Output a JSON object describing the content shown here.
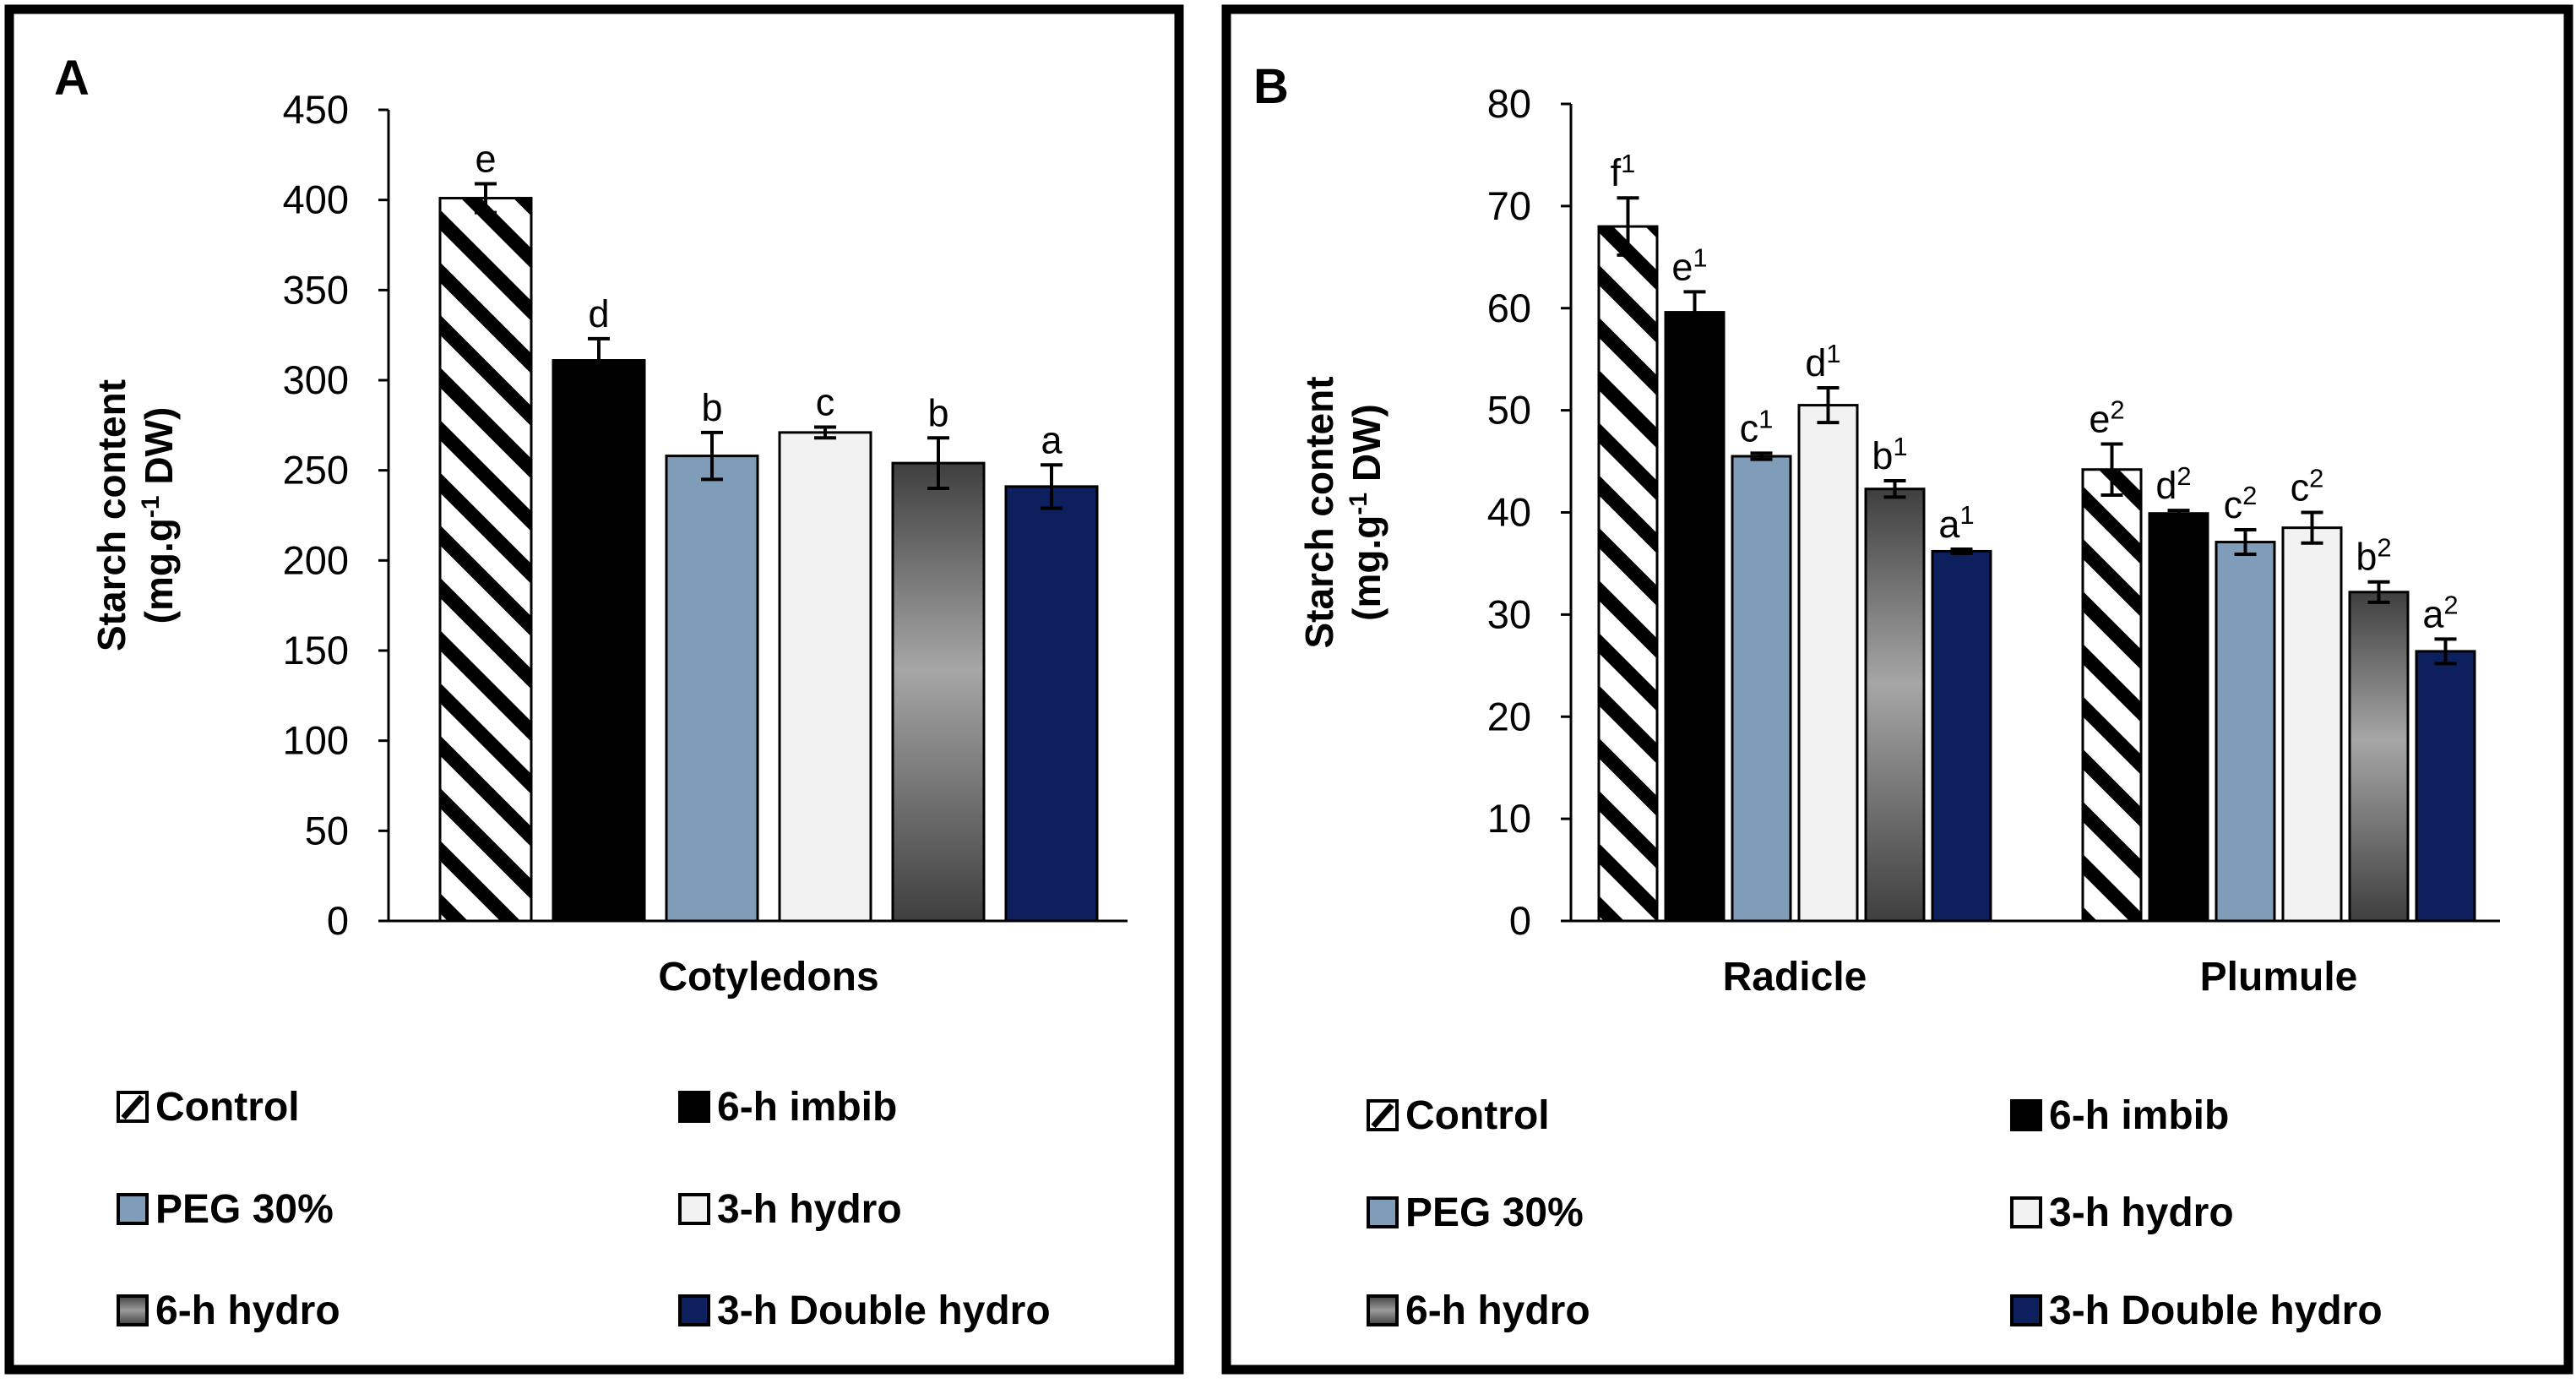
{
  "legend": [
    {
      "label": "Control",
      "color": "#ffffff",
      "pattern": "hatch"
    },
    {
      "label": "6-h imbib",
      "color": "#000000",
      "pattern": "solid"
    },
    {
      "label": "PEG 30%",
      "color": "#7f9cb9",
      "pattern": "solid"
    },
    {
      "label": "3-h hydro",
      "color": "#f2f2f2",
      "pattern": "solid"
    },
    {
      "label": "6-h hydro",
      "color": "#808080",
      "pattern": "gradient"
    },
    {
      "label": "3-h Double hydro",
      "color": "#0d1f5c",
      "pattern": "solid"
    }
  ],
  "chart_data": [
    {
      "panel": "A",
      "type": "bar",
      "title": "",
      "ylabel_line1": "Starch content",
      "ylabel_line2_pre": "(mg.g",
      "ylabel_line2_sup": "-1",
      "ylabel_line2_post": " DW)",
      "ylim": [
        0,
        450
      ],
      "yticks": [
        0,
        50,
        100,
        150,
        200,
        250,
        300,
        350,
        400,
        450
      ],
      "categories": [
        "Cotyledons"
      ],
      "series": [
        {
          "name": "Control",
          "values": [
            401
          ],
          "errors": [
            8
          ],
          "letters": [
            [
              "e",
              ""
            ]
          ]
        },
        {
          "name": "6-h imbib",
          "values": [
            311
          ],
          "errors": [
            12
          ],
          "letters": [
            [
              "d",
              ""
            ]
          ]
        },
        {
          "name": "PEG 30%",
          "values": [
            258
          ],
          "errors": [
            13
          ],
          "letters": [
            [
              "b",
              ""
            ]
          ]
        },
        {
          "name": "3-h hydro",
          "values": [
            271
          ],
          "errors": [
            3
          ],
          "letters": [
            [
              "c",
              ""
            ]
          ]
        },
        {
          "name": "6-h hydro",
          "values": [
            254
          ],
          "errors": [
            14
          ],
          "letters": [
            [
              "b",
              ""
            ]
          ]
        },
        {
          "name": "3-h Double hydro",
          "values": [
            241
          ],
          "errors": [
            12
          ],
          "letters": [
            [
              "a",
              ""
            ]
          ]
        }
      ]
    },
    {
      "panel": "B",
      "type": "bar",
      "title": "",
      "ylabel_line1": "Starch content",
      "ylabel_line2_pre": "(mg.g",
      "ylabel_line2_sup": "-1",
      "ylabel_line2_post": " DW)",
      "ylim": [
        0,
        80
      ],
      "yticks": [
        0,
        10,
        20,
        30,
        40,
        50,
        60,
        70,
        80
      ],
      "categories": [
        "Radicle",
        "Plumule"
      ],
      "series": [
        {
          "name": "Control",
          "values": [
            68,
            44.2
          ],
          "errors": [
            2.8,
            2.5
          ],
          "letters": [
            [
              "f",
              "1"
            ],
            [
              "e",
              "2"
            ]
          ]
        },
        {
          "name": "6-h imbib",
          "values": [
            59.6,
            39.9
          ],
          "errors": [
            2.0,
            0.3
          ],
          "letters": [
            [
              "e",
              "1"
            ],
            [
              "d",
              "2"
            ]
          ]
        },
        {
          "name": "PEG 30%",
          "values": [
            45.5,
            37.1
          ],
          "errors": [
            0.3,
            1.2
          ],
          "letters": [
            [
              "c",
              "1"
            ],
            [
              "c",
              "2"
            ]
          ]
        },
        {
          "name": "3-h hydro",
          "values": [
            50.5,
            38.5
          ],
          "errors": [
            1.7,
            1.5
          ],
          "letters": [
            [
              "d",
              "1"
            ],
            [
              "c",
              "2"
            ]
          ]
        },
        {
          "name": "6-h hydro",
          "values": [
            42.3,
            32.2
          ],
          "errors": [
            0.8,
            1.0
          ],
          "letters": [
            [
              "b",
              "1"
            ],
            [
              "b",
              "2"
            ]
          ]
        },
        {
          "name": "3-h Double hydro",
          "values": [
            36.2,
            26.4
          ],
          "errors": [
            0.2,
            1.2
          ],
          "letters": [
            [
              "a",
              "1"
            ],
            [
              "a",
              "2"
            ]
          ]
        }
      ]
    }
  ]
}
